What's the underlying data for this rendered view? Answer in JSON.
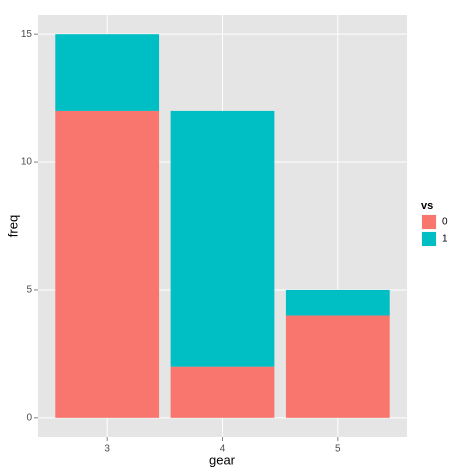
{
  "chart_data": {
    "type": "bar",
    "stacked": true,
    "x_label": "gear",
    "y_label": "freq",
    "categories": [
      "3",
      "4",
      "5"
    ],
    "legend_title": "vs",
    "legend": "right",
    "series": [
      {
        "name": "0",
        "color": "#F8766D",
        "values": [
          12,
          2,
          4
        ]
      },
      {
        "name": "1",
        "color": "#00BFC4",
        "values": [
          3,
          10,
          1
        ]
      }
    ],
    "ylim": [
      -0.75,
      15.75
    ],
    "yticks": [
      0,
      5,
      10,
      15
    ],
    "grid": true
  }
}
